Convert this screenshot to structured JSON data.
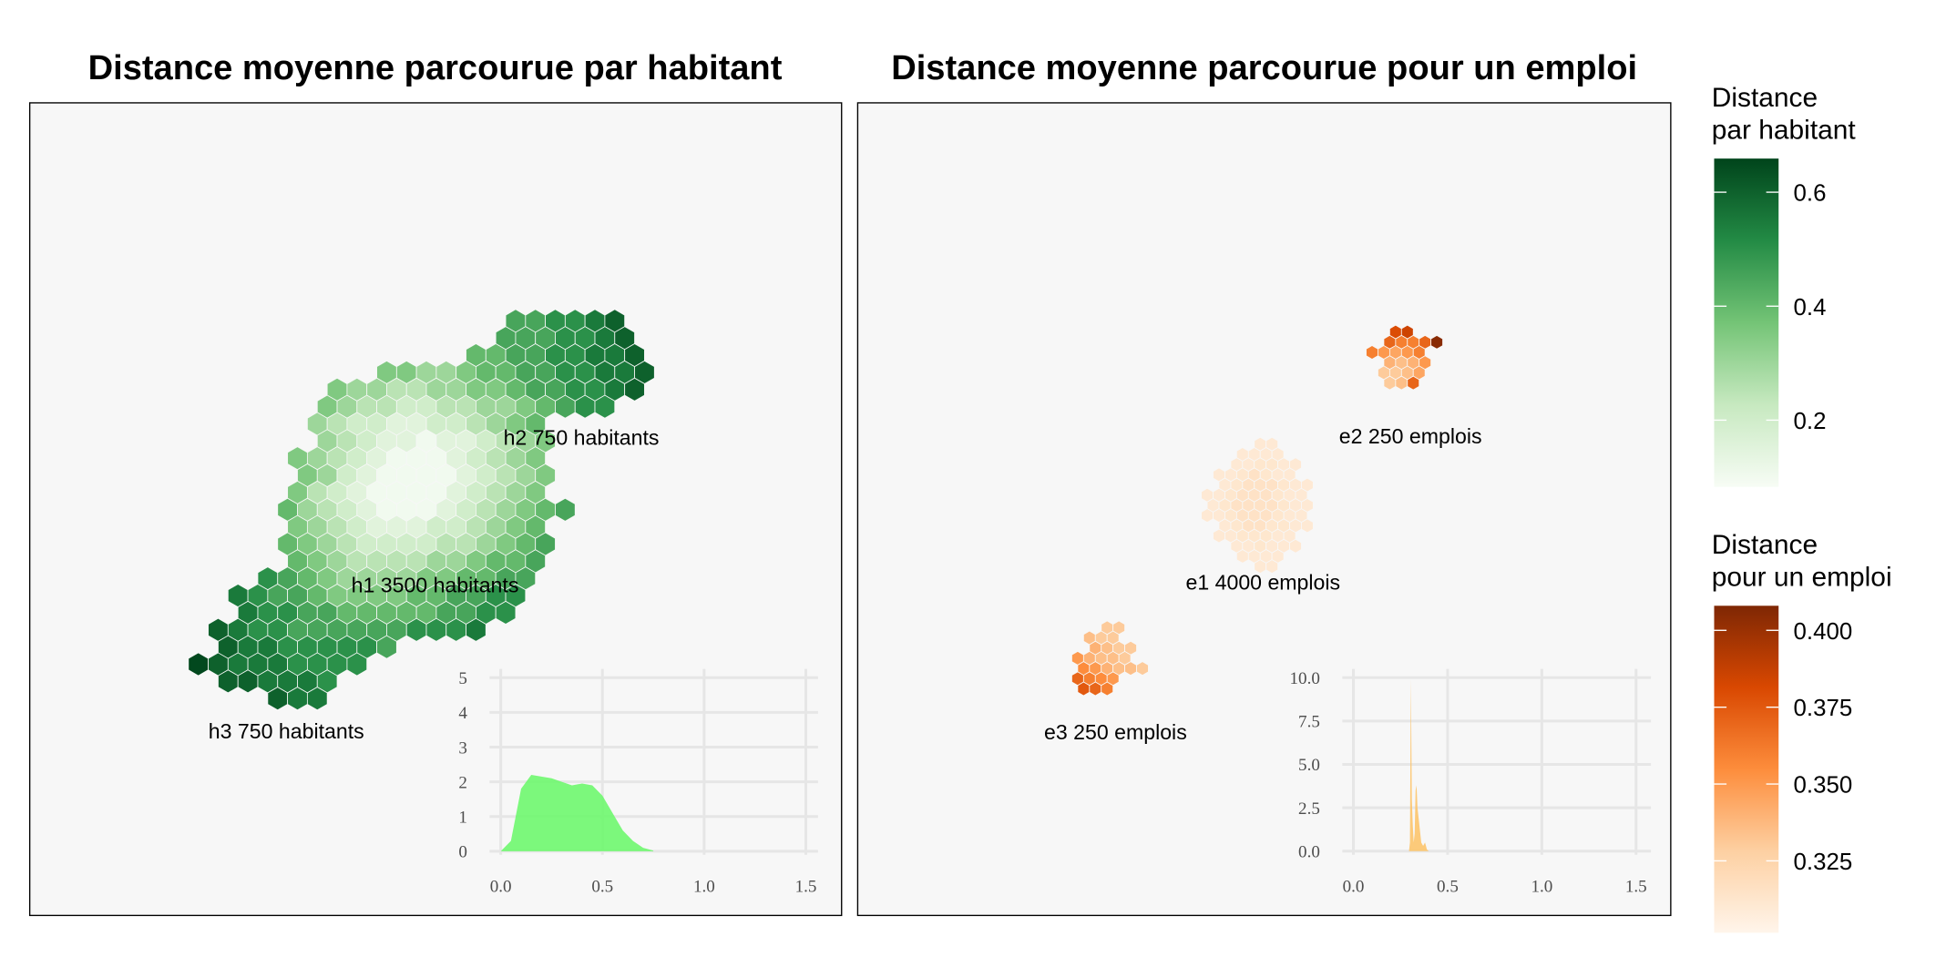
{
  "chart_data": [
    {
      "type": "hexmap",
      "title": "Distance moyenne parcourue par habitant",
      "cells": [
        {
          "row": 0,
          "col": 16,
          "values": [
            0.45,
            0.45,
            0.5,
            0.5,
            0.55,
            0.6
          ]
        },
        {
          "row": 1,
          "col": 15,
          "values": [
            0.45,
            0.45,
            0.45,
            0.5,
            0.5,
            0.55,
            0.6
          ]
        },
        {
          "row": 2,
          "col": 14,
          "values": [
            0.4,
            0.4,
            0.45,
            0.45,
            0.5,
            0.5,
            0.55,
            0.55,
            0.6
          ]
        },
        {
          "row": 3,
          "col": 9,
          "values": [
            0.35,
            0.35,
            0.3,
            0.3,
            0.35,
            0.4,
            0.4,
            0.45,
            0.45,
            0.5,
            0.5,
            0.55,
            0.55,
            0.6
          ]
        },
        {
          "row": 4,
          "col": 7,
          "values": [
            0.35,
            0.3,
            0.3,
            0.25,
            0.25,
            0.3,
            0.3,
            0.35,
            0.35,
            0.4,
            0.45,
            0.45,
            0.5,
            0.5,
            0.55,
            0.6
          ]
        },
        {
          "row": 5,
          "col": 6,
          "values": [
            0.35,
            0.3,
            0.25,
            0.25,
            0.2,
            0.2,
            0.25,
            0.25,
            0.3,
            0.3,
            0.35,
            0.4,
            0.45,
            0.5,
            0.5
          ]
        },
        {
          "row": 6,
          "col": 6,
          "values": [
            0.3,
            0.25,
            0.2,
            0.2,
            0.15,
            0.15,
            0.2,
            0.2,
            0.25,
            0.3,
            0.35,
            0.4
          ]
        },
        {
          "row": 7,
          "col": 6,
          "values": [
            0.3,
            0.25,
            0.2,
            0.15,
            0.15,
            0.1,
            0.15,
            0.15,
            0.2,
            0.25,
            0.3,
            0.35
          ]
        },
        {
          "row": 8,
          "col": 5,
          "values": [
            0.35,
            0.3,
            0.25,
            0.2,
            0.15,
            0.1,
            0.1,
            0.1,
            0.15,
            0.2,
            0.25,
            0.3,
            0.35
          ]
        },
        {
          "row": 9,
          "col": 5,
          "values": [
            0.35,
            0.3,
            0.2,
            0.15,
            0.1,
            0.1,
            0.1,
            0.1,
            0.15,
            0.2,
            0.25,
            0.3,
            0.35
          ]
        },
        {
          "row": 10,
          "col": 5,
          "values": [
            0.35,
            0.25,
            0.2,
            0.15,
            0.1,
            0.1,
            0.1,
            0.1,
            0.15,
            0.2,
            0.25,
            0.3,
            0.35
          ]
        },
        {
          "row": 11,
          "col": 4,
          "values": [
            0.4,
            0.3,
            0.25,
            0.2,
            0.15,
            0.1,
            0.1,
            0.1,
            0.15,
            0.2,
            0.25,
            0.3,
            0.35,
            0.4,
            0.45
          ]
        },
        {
          "row": 12,
          "col": 5,
          "values": [
            0.35,
            0.3,
            0.25,
            0.2,
            0.15,
            0.15,
            0.15,
            0.2,
            0.2,
            0.25,
            0.3,
            0.35,
            0.4
          ]
        },
        {
          "row": 13,
          "col": 4,
          "values": [
            0.4,
            0.35,
            0.3,
            0.25,
            0.2,
            0.2,
            0.2,
            0.2,
            0.25,
            0.25,
            0.3,
            0.35,
            0.4,
            0.45
          ]
        },
        {
          "row": 14,
          "col": 5,
          "values": [
            0.4,
            0.35,
            0.3,
            0.25,
            0.25,
            0.25,
            0.25,
            0.3,
            0.3,
            0.35,
            0.4,
            0.4,
            0.45
          ]
        },
        {
          "row": 15,
          "col": 3,
          "values": [
            0.5,
            0.45,
            0.4,
            0.35,
            0.3,
            0.3,
            0.3,
            0.3,
            0.35,
            0.35,
            0.4,
            0.4,
            0.45,
            0.45
          ]
        },
        {
          "row": 16,
          "col": 2,
          "values": [
            0.55,
            0.5,
            0.45,
            0.45,
            0.4,
            0.35,
            0.35,
            0.35,
            0.35,
            0.4,
            0.4,
            0.45,
            0.45,
            0.5,
            0.5
          ]
        },
        {
          "row": 17,
          "col": 2,
          "values": [
            0.55,
            0.5,
            0.5,
            0.45,
            0.45,
            0.4,
            0.4,
            0.4,
            0.4,
            0.4,
            0.45,
            0.45,
            0.5,
            0.5
          ]
        },
        {
          "row": 18,
          "col": 1,
          "values": [
            0.6,
            0.55,
            0.5,
            0.5,
            0.45,
            0.45,
            0.45,
            0.45,
            0.45,
            0.45,
            0.5,
            0.5,
            0.5,
            0.55
          ]
        },
        {
          "row": 19,
          "col": 1,
          "values": [
            0.6,
            0.55,
            0.55,
            0.5,
            0.5,
            0.5,
            0.5,
            0.5,
            0.45
          ]
        },
        {
          "row": 20,
          "col": 0,
          "values": [
            0.65,
            0.6,
            0.55,
            0.55,
            0.55,
            0.5,
            0.5,
            0.5,
            0.5
          ]
        },
        {
          "row": 21,
          "col": 1,
          "values": [
            0.6,
            0.6,
            0.55,
            0.55,
            0.55,
            0.5
          ]
        },
        {
          "row": 22,
          "col": 4,
          "values": [
            0.6,
            0.55,
            0.55
          ]
        }
      ],
      "labels": [
        "h1 3500 habitants",
        "h2 750 habitants",
        "h3 750 habitants"
      ],
      "colorbar": {
        "title": [
          "Distance",
          "par habitant"
        ],
        "lim": [
          0.083,
          0.659
        ],
        "ticks": [
          0.2,
          0.4,
          0.6
        ],
        "colors": [
          "#f7fcf5",
          "#c7e9c0",
          "#74c476",
          "#238b45",
          "#00441b"
        ]
      }
    },
    {
      "type": "hexmap",
      "title": "Distance moyenne parcourue pour un emploi",
      "cells": [
        {
          "row": 0,
          "col": 28,
          "values": [
            0.38,
            0.385
          ]
        },
        {
          "row": 1,
          "col": 27,
          "values": [
            0.37,
            0.36,
            0.36,
            0.37,
            0.405
          ]
        },
        {
          "row": 2,
          "col": 26,
          "values": [
            0.36,
            0.35,
            0.345,
            0.35,
            0.36
          ]
        },
        {
          "row": 3,
          "col": 27,
          "values": [
            0.34,
            0.335,
            0.34,
            0.35
          ]
        },
        {
          "row": 4,
          "col": 27,
          "values": [
            0.33,
            0.33,
            0.335,
            0.345
          ]
        },
        {
          "row": 5,
          "col": 27,
          "values": [
            0.33,
            0.335,
            0.37
          ]
        },
        {
          "row": 11,
          "col": 16,
          "values": [
            0.31,
            0.31
          ]
        },
        {
          "row": 12,
          "col": 15,
          "values": [
            0.31,
            0.31,
            0.31,
            0.31
          ]
        },
        {
          "row": 13,
          "col": 14,
          "values": [
            0.31,
            0.31,
            0.312,
            0.312,
            0.31,
            0.31
          ]
        },
        {
          "row": 14,
          "col": 13,
          "values": [
            0.31,
            0.31,
            0.312,
            0.315,
            0.312,
            0.31,
            0.31
          ]
        },
        {
          "row": 15,
          "col": 13,
          "values": [
            0.31,
            0.312,
            0.315,
            0.315,
            0.315,
            0.312,
            0.31,
            0.31
          ]
        },
        {
          "row": 16,
          "col": 12,
          "values": [
            0.31,
            0.31,
            0.312,
            0.315,
            0.315,
            0.315,
            0.312,
            0.31,
            0.31
          ]
        },
        {
          "row": 17,
          "col": 12,
          "values": [
            0.31,
            0.312,
            0.315,
            0.315,
            0.315,
            0.315,
            0.312,
            0.31,
            0.31
          ]
        },
        {
          "row": 18,
          "col": 12,
          "values": [
            0.31,
            0.31,
            0.312,
            0.315,
            0.315,
            0.315,
            0.312,
            0.31,
            0.31
          ]
        },
        {
          "row": 19,
          "col": 13,
          "values": [
            0.31,
            0.312,
            0.315,
            0.315,
            0.312,
            0.312,
            0.31,
            0.31
          ]
        },
        {
          "row": 20,
          "col": 13,
          "values": [
            0.31,
            0.31,
            0.312,
            0.312,
            0.312,
            0.31,
            0.31
          ]
        },
        {
          "row": 21,
          "col": 14,
          "values": [
            0.31,
            0.31,
            0.312,
            0.31,
            0.31,
            0.31
          ]
        },
        {
          "row": 22,
          "col": 15,
          "values": [
            0.31,
            0.31,
            0.31,
            0.31
          ]
        },
        {
          "row": 23,
          "col": 16,
          "values": [
            0.31,
            0.31
          ]
        },
        {
          "row": 29,
          "col": 3,
          "values": [
            0.33,
            0.33
          ]
        },
        {
          "row": 30,
          "col": 2,
          "values": [
            0.335,
            0.33,
            0.33
          ]
        },
        {
          "row": 31,
          "col": 2,
          "values": [
            0.34,
            0.335,
            0.33,
            0.33
          ]
        },
        {
          "row": 32,
          "col": 1,
          "values": [
            0.35,
            0.34,
            0.335,
            0.335,
            0.33
          ]
        },
        {
          "row": 33,
          "col": 1,
          "values": [
            0.355,
            0.35,
            0.34,
            0.335,
            0.335,
            0.33
          ]
        },
        {
          "row": 34,
          "col": 1,
          "values": [
            0.37,
            0.36,
            0.355,
            0.35
          ]
        },
        {
          "row": 35,
          "col": 1,
          "values": [
            0.375,
            0.37,
            0.36
          ]
        }
      ],
      "labels": [
        "e1 4000 emplois",
        "e2 250 emplois",
        "e3 250 emplois"
      ],
      "colorbar": {
        "title": [
          "Distance",
          "pour un emploi"
        ],
        "lim": [
          0.3016,
          0.408
        ],
        "ticks": [
          {
            "value": 0.325,
            "label": "0.325"
          },
          {
            "value": 0.35,
            "label": "0.350"
          },
          {
            "value": 0.375,
            "label": "0.375"
          },
          {
            "value": 0.4,
            "label": "0.400"
          }
        ],
        "colors": [
          "#fff5eb",
          "#fdd0a2",
          "#fd8d3c",
          "#d94801",
          "#7f2704"
        ]
      }
    },
    {
      "type": "area",
      "color": "#6ef76e",
      "x": [
        0,
        0.05,
        0.1,
        0.15,
        0.2,
        0.25,
        0.3,
        0.35,
        0.4,
        0.45,
        0.5,
        0.55,
        0.6,
        0.65,
        0.7,
        0.75
      ],
      "values": [
        0,
        0.3,
        1.8,
        2.2,
        2.15,
        2.1,
        2.0,
        1.9,
        1.95,
        1.9,
        1.6,
        1.1,
        0.6,
        0.3,
        0.1,
        0.02
      ],
      "xlim": [
        -0.055,
        1.56
      ],
      "ylim": [
        -0.1,
        5.25
      ],
      "xticks": [
        {
          "value": 0,
          "label": "0.0"
        },
        {
          "value": 0.5,
          "label": "0.5"
        },
        {
          "value": 1,
          "label": "1.0"
        },
        {
          "value": 1.5,
          "label": "1.5"
        }
      ],
      "yticks": [
        0,
        1,
        2,
        3,
        4,
        5
      ],
      "grid": true
    },
    {
      "type": "area",
      "color": "#fcc46c",
      "x": [
        0.295,
        0.3,
        0.305,
        0.31,
        0.315,
        0.32,
        0.325,
        0.33,
        0.335,
        0.34,
        0.35,
        0.36,
        0.37,
        0.38,
        0.39,
        0.4
      ],
      "values": [
        0,
        0.5,
        9.9,
        3,
        1.5,
        0.5,
        1.0,
        3.5,
        3.8,
        2.5,
        1.5,
        0.5,
        0.3,
        0.5,
        0.1,
        0
      ],
      "xlim": [
        -0.059,
        1.579
      ],
      "ylim": [
        -0.21,
        10.5
      ],
      "xticks": [
        {
          "value": 0,
          "label": "0.0"
        },
        {
          "value": 0.5,
          "label": "0.5"
        },
        {
          "value": 1,
          "label": "1.0"
        },
        {
          "value": 1.5,
          "label": "1.5"
        }
      ],
      "yticks": [
        {
          "value": 0,
          "label": "0.0"
        },
        {
          "value": 2.5,
          "label": "2.5"
        },
        {
          "value": 5,
          "label": "5.0"
        },
        {
          "value": 7.5,
          "label": "7.5"
        },
        {
          "value": 10,
          "label": "10.0"
        }
      ],
      "grid": true
    }
  ]
}
